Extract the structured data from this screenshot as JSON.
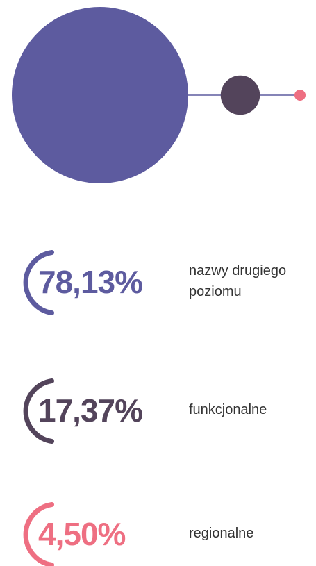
{
  "chart_data": {
    "type": "bubble",
    "categories": [
      "nazwy drugiego poziomu",
      "funkcjonalne",
      "regionalne"
    ],
    "values": [
      78.13,
      17.37,
      4.5
    ],
    "value_labels": [
      "78,13%",
      "17,37%",
      "4,50%"
    ],
    "colors": [
      "#5d5b9f",
      "#53445b",
      "#ee6f82"
    ]
  }
}
